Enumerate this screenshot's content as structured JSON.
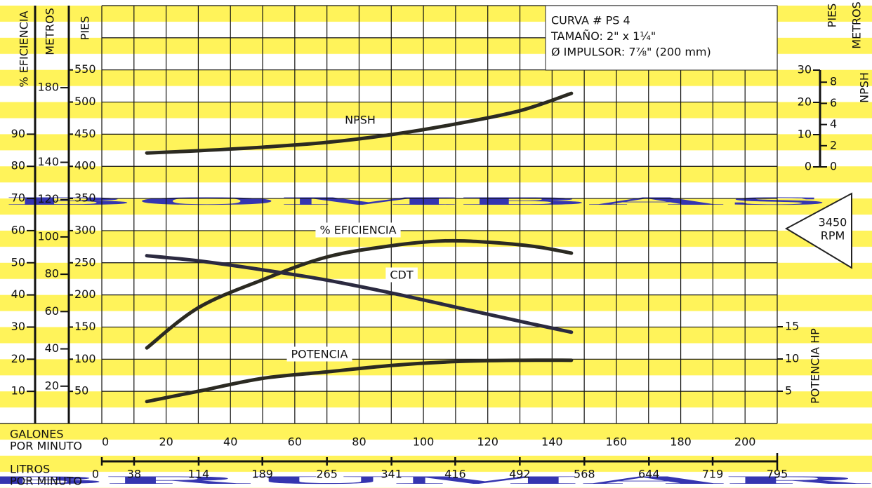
{
  "watermark": [
    "BOMBAS",
    "BRUMAR"
  ],
  "chart_data": {
    "type": "line",
    "annotations": [
      "CURVA # PS 4",
      "TAMAÑO: 2\" x 1¼\"",
      "Ø IMPULSOR: 7⅞\" (200 mm)"
    ],
    "speed": [
      "3450",
      "RPM"
    ],
    "xlabel": [
      "GALONES",
      "POR MINUTO"
    ],
    "xlim": [
      0,
      210
    ],
    "xticks": [
      0,
      20,
      40,
      60,
      80,
      100,
      120,
      140,
      160,
      180,
      200
    ],
    "xgrid": [
      0,
      10,
      20,
      30,
      40,
      50,
      60,
      70,
      80,
      90,
      100,
      110,
      120,
      130,
      140,
      150,
      160,
      170,
      180,
      190,
      200,
      210
    ],
    "x2label": [
      "LITROS",
      "POR MINUTO"
    ],
    "x2lim": [
      0,
      795
    ],
    "x2ticks": [
      0,
      38,
      114,
      189,
      265,
      341,
      416,
      492,
      568,
      644,
      719,
      795
    ],
    "ylabel": "PIES",
    "ylim": [
      0,
      650
    ],
    "yticks": [
      50,
      100,
      150,
      200,
      250,
      300,
      350,
      400,
      450,
      500,
      550
    ],
    "ygrid": [
      0,
      50,
      100,
      150,
      200,
      250,
      300,
      350,
      400,
      450,
      500,
      550,
      600,
      650
    ],
    "axes": [
      {
        "id": "eff",
        "label": "% EFICIENCIA",
        "lim": [
          0,
          130
        ],
        "ticks": [
          10,
          20,
          30,
          40,
          50,
          60,
          70,
          80,
          90
        ]
      },
      {
        "id": "m",
        "label": "METROS",
        "lim": [
          0,
          224
        ],
        "ticks": [
          20,
          40,
          60,
          80,
          100,
          120,
          140,
          180
        ]
      },
      {
        "id": "npsh",
        "label": "PIES",
        "lim": [
          0,
          30
        ],
        "ticks": [
          0,
          10,
          20,
          30
        ]
      },
      {
        "id": "npsh_m",
        "label": "METROS",
        "lim": [
          0,
          9.14
        ],
        "ticks": [
          0,
          2,
          4,
          6,
          8
        ]
      },
      {
        "id": "hp",
        "label": "POTENCIA HP",
        "lim": [
          0,
          15
        ],
        "ticks": [
          5,
          10,
          15
        ]
      }
    ],
    "npsh_label": "NPSH",
    "series": [
      {
        "name": "NPSH",
        "axis": "npsh",
        "color": "#2b2a22",
        "x": [
          14,
          30,
          50,
          70,
          90,
          110,
          130,
          146
        ],
        "values": [
          4.3,
          5,
          6.1,
          7.6,
          10,
          13.3,
          17.4,
          22.8
        ]
      },
      {
        "name": "% EFICIENCIA",
        "axis": "eff",
        "color": "#2b2a22",
        "x": [
          14,
          30,
          50,
          70,
          90,
          106,
          120,
          135,
          146
        ],
        "values": [
          23.5,
          36,
          44.7,
          51.8,
          55.3,
          56.8,
          56.4,
          55,
          53
        ]
      },
      {
        "name": "CDT",
        "axis": "y",
        "color": "#2b2a40",
        "x": [
          14,
          30,
          50,
          70,
          90,
          110,
          130,
          146
        ],
        "values": [
          261,
          253,
          239,
          223,
          203,
          181,
          159,
          142
        ]
      },
      {
        "name": "POTENCIA",
        "axis": "hp",
        "color": "#2b2a22",
        "x": [
          14,
          30,
          50,
          70,
          90,
          110,
          130,
          146
        ],
        "values": [
          3.4,
          5,
          7,
          8,
          9,
          9.6,
          9.8,
          9.8
        ]
      }
    ]
  }
}
